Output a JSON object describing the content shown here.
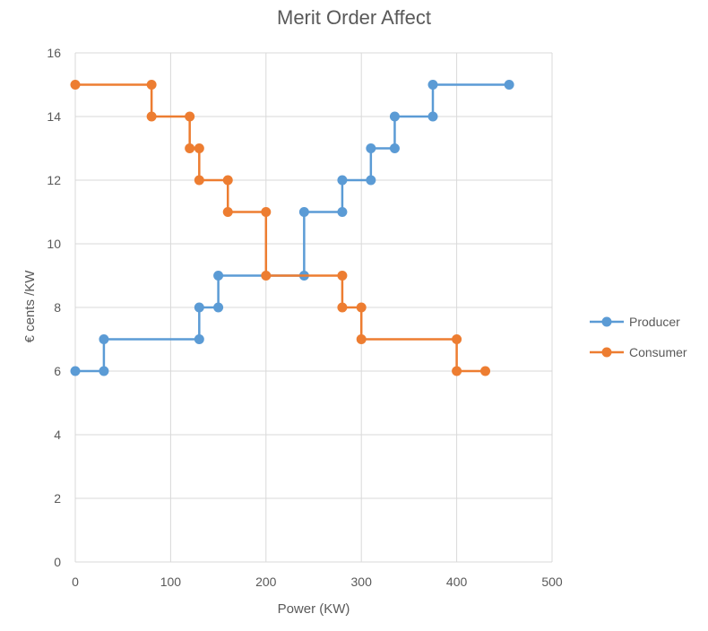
{
  "chart_data": {
    "type": "scatter",
    "title": "Merit Order Affect",
    "xlabel": "Power (KW)",
    "ylabel": "€ cents /KW",
    "xlim": [
      0,
      500
    ],
    "ylim": [
      0,
      16
    ],
    "x_ticks": [
      "0",
      "100",
      "200",
      "300",
      "400",
      "500"
    ],
    "y_ticks": [
      "0",
      "2",
      "4",
      "6",
      "8",
      "10",
      "12",
      "14",
      "16"
    ],
    "grid": true,
    "legend_position": "right",
    "series": [
      {
        "name": "Producer",
        "color": "#5b9bd5",
        "points": [
          [
            0,
            6
          ],
          [
            30,
            6
          ],
          [
            30,
            7
          ],
          [
            130,
            7
          ],
          [
            130,
            8
          ],
          [
            150,
            8
          ],
          [
            150,
            9
          ],
          [
            240,
            9
          ],
          [
            240,
            11
          ],
          [
            280,
            11
          ],
          [
            280,
            12
          ],
          [
            310,
            12
          ],
          [
            310,
            13
          ],
          [
            335,
            13
          ],
          [
            335,
            14
          ],
          [
            375,
            14
          ],
          [
            375,
            15
          ],
          [
            455,
            15
          ]
        ]
      },
      {
        "name": "Consumer",
        "color": "#ed7d31",
        "points": [
          [
            0,
            15
          ],
          [
            80,
            15
          ],
          [
            80,
            14
          ],
          [
            120,
            14
          ],
          [
            120,
            13
          ],
          [
            130,
            13
          ],
          [
            130,
            12
          ],
          [
            160,
            12
          ],
          [
            160,
            11
          ],
          [
            200,
            11
          ],
          [
            200,
            9
          ],
          [
            280,
            9
          ],
          [
            280,
            8
          ],
          [
            300,
            8
          ],
          [
            300,
            7
          ],
          [
            400,
            7
          ],
          [
            400,
            6
          ],
          [
            430,
            6
          ]
        ]
      }
    ]
  }
}
